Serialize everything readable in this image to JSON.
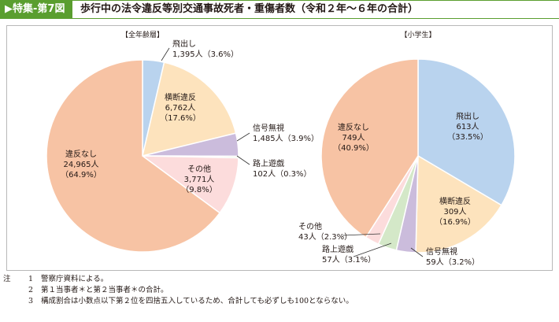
{
  "figure": {
    "tag": "▶特集-第7図",
    "title": "歩行中の法令違反等別交通事故死者・重傷者数（令和２年～６年の合計）"
  },
  "chart_data": [
    {
      "type": "pie",
      "title": "【全年齢層】",
      "slices": [
        {
          "label": "飛出し",
          "value": 1395,
          "percent": "3.6%",
          "text": "1,395人（3.6%）",
          "color": "#b9d3ee"
        },
        {
          "label": "横断違反",
          "value": 6762,
          "percent": "17.6%",
          "text": "6,762人",
          "pct_text": "（17.6%）",
          "color": "#fde3bd"
        },
        {
          "label": "信号無視",
          "value": 1485,
          "percent": "3.9%",
          "text": "1,485人（3.9%）",
          "color": "#cbbcdc"
        },
        {
          "label": "路上遊戯",
          "value": 102,
          "percent": "0.3%",
          "text": "102人（0.3%）",
          "color": "#d4e8c8"
        },
        {
          "label": "その他",
          "value": 3771,
          "percent": "9.8%",
          "text": "3,771人",
          "pct_text": "（9.8%）",
          "color": "#fcdcdc"
        },
        {
          "label": "違反なし",
          "value": 24965,
          "percent": "64.9%",
          "text": "24,965人",
          "pct_text": "（64.9%）",
          "color": "#f7c3a4"
        }
      ]
    },
    {
      "type": "pie",
      "title": "【小学生】",
      "slices": [
        {
          "label": "飛出し",
          "value": 613,
          "percent": "33.5%",
          "text": "613人",
          "pct_text": "（33.5%）",
          "color": "#b9d3ee"
        },
        {
          "label": "横断違反",
          "value": 309,
          "percent": "16.9%",
          "text": "309人",
          "pct_text": "（16.9%）",
          "color": "#fde3bd"
        },
        {
          "label": "信号無視",
          "value": 59,
          "percent": "3.2%",
          "text": "59人（3.2%）",
          "color": "#cbbcdc"
        },
        {
          "label": "路上遊戯",
          "value": 57,
          "percent": "3.1%",
          "text": "57人（3.1%）",
          "color": "#d4e8c8"
        },
        {
          "label": "その他",
          "value": 43,
          "percent": "2.3%",
          "text": "43人（2.3%）",
          "color": "#fcdcdc"
        },
        {
          "label": "違反なし",
          "value": 749,
          "percent": "40.9%",
          "text": "749人",
          "pct_text": "（40.9%）",
          "color": "#f7c3a4"
        }
      ]
    }
  ],
  "notes": {
    "head": "注",
    "items": [
      {
        "num": "1",
        "text": "警察庁資料による。"
      },
      {
        "num": "2",
        "text": "第１当事者＊と第２当事者＊の合計。"
      },
      {
        "num": "3",
        "text": "構成割合は小数点以下第２位を四捨五入しているため、合計しても必ずしも100とならない。"
      }
    ]
  },
  "colors": {
    "accent": "#5a9e2f",
    "outline": "#ffffff",
    "leader": "#333333"
  }
}
